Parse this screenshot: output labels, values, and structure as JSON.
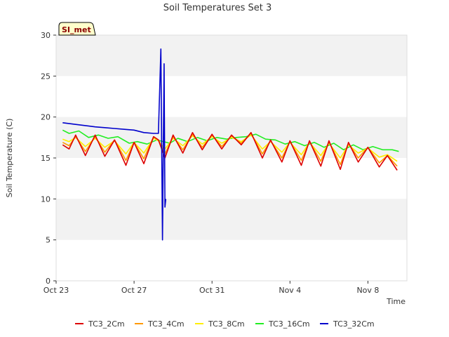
{
  "chart_data": {
    "type": "line",
    "title": "Soil Temperatures Set 3",
    "xlabel": "Time",
    "ylabel": "Soil Temperature (C)",
    "ylim": [
      0,
      30
    ],
    "yticks": [
      0,
      5,
      10,
      15,
      20,
      25,
      30
    ],
    "xlim": [
      "2023-10-23",
      "2023-11-10"
    ],
    "xticks": [
      {
        "date": "2023-10-23",
        "label": "Oct 23"
      },
      {
        "date": "2023-10-27",
        "label": "Oct 27"
      },
      {
        "date": "2023-10-31",
        "label": "Oct 31"
      },
      {
        "date": "2023-11-04",
        "label": "Nov 4"
      },
      {
        "date": "2023-11-08",
        "label": "Nov 8"
      }
    ],
    "grid": "horizontal bands",
    "legend_position": "bottom",
    "site_badge": "SI_met",
    "series": [
      {
        "name": "TC3_2Cm",
        "color": "#dd0000",
        "points": [
          [
            "2023-10-23 08:00",
            16.6
          ],
          [
            "2023-10-23 16:00",
            16.1
          ],
          [
            "2023-10-24 00:00",
            17.8
          ],
          [
            "2023-10-24 12:00",
            15.3
          ],
          [
            "2023-10-25 00:00",
            17.8
          ],
          [
            "2023-10-25 12:00",
            15.2
          ],
          [
            "2023-10-26 00:00",
            17.2
          ],
          [
            "2023-10-26 14:00",
            14.1
          ],
          [
            "2023-10-27 00:00",
            16.9
          ],
          [
            "2023-10-27 12:00",
            14.3
          ],
          [
            "2023-10-28 00:00",
            17.6
          ],
          [
            "2023-10-28 06:00",
            17.2
          ],
          [
            "2023-10-28 14:00",
            15.0
          ],
          [
            "2023-10-29 00:00",
            17.8
          ],
          [
            "2023-10-29 12:00",
            15.6
          ],
          [
            "2023-10-30 00:00",
            18.1
          ],
          [
            "2023-10-30 12:00",
            16.0
          ],
          [
            "2023-10-31 00:00",
            17.9
          ],
          [
            "2023-10-31 12:00",
            16.1
          ],
          [
            "2023-11-01 00:00",
            17.8
          ],
          [
            "2023-11-01 12:00",
            16.6
          ],
          [
            "2023-11-02 00:00",
            18.1
          ],
          [
            "2023-11-02 14:00",
            15.0
          ],
          [
            "2023-11-03 00:00",
            17.2
          ],
          [
            "2023-11-03 14:00",
            14.5
          ],
          [
            "2023-11-04 00:00",
            17.1
          ],
          [
            "2023-11-04 14:00",
            14.1
          ],
          [
            "2023-11-05 00:00",
            17.1
          ],
          [
            "2023-11-05 14:00",
            14.0
          ],
          [
            "2023-11-06 00:00",
            17.1
          ],
          [
            "2023-11-06 14:00",
            13.6
          ],
          [
            "2023-11-07 00:00",
            16.9
          ],
          [
            "2023-11-07 12:00",
            14.5
          ],
          [
            "2023-11-08 00:00",
            16.3
          ],
          [
            "2023-11-08 14:00",
            13.9
          ],
          [
            "2023-11-09 00:00",
            15.3
          ],
          [
            "2023-11-09 12:00",
            13.5
          ]
        ]
      },
      {
        "name": "TC3_4Cm",
        "color": "#ff9900",
        "points": [
          [
            "2023-10-23 08:00",
            16.9
          ],
          [
            "2023-10-23 16:00",
            16.5
          ],
          [
            "2023-10-24 00:00",
            17.6
          ],
          [
            "2023-10-24 12:00",
            15.8
          ],
          [
            "2023-10-25 00:00",
            17.6
          ],
          [
            "2023-10-25 12:00",
            15.7
          ],
          [
            "2023-10-26 00:00",
            17.2
          ],
          [
            "2023-10-26 14:00",
            14.7
          ],
          [
            "2023-10-27 00:00",
            16.9
          ],
          [
            "2023-10-27 12:00",
            14.9
          ],
          [
            "2023-10-28 00:00",
            17.6
          ],
          [
            "2023-10-28 06:00",
            17.2
          ],
          [
            "2023-10-28 14:00",
            15.5
          ],
          [
            "2023-10-29 00:00",
            17.6
          ],
          [
            "2023-10-29 12:00",
            16.0
          ],
          [
            "2023-10-30 00:00",
            17.9
          ],
          [
            "2023-10-30 12:00",
            16.3
          ],
          [
            "2023-10-31 00:00",
            17.8
          ],
          [
            "2023-10-31 12:00",
            16.4
          ],
          [
            "2023-11-01 00:00",
            17.7
          ],
          [
            "2023-11-01 12:00",
            16.8
          ],
          [
            "2023-11-02 00:00",
            18.0
          ],
          [
            "2023-11-02 14:00",
            15.5
          ],
          [
            "2023-11-03 00:00",
            17.1
          ],
          [
            "2023-11-03 14:00",
            15.0
          ],
          [
            "2023-11-04 00:00",
            17.0
          ],
          [
            "2023-11-04 14:00",
            14.7
          ],
          [
            "2023-11-05 00:00",
            17.0
          ],
          [
            "2023-11-05 14:00",
            14.6
          ],
          [
            "2023-11-06 00:00",
            17.0
          ],
          [
            "2023-11-06 14:00",
            14.2
          ],
          [
            "2023-11-07 00:00",
            16.8
          ],
          [
            "2023-11-07 12:00",
            15.0
          ],
          [
            "2023-11-08 00:00",
            16.3
          ],
          [
            "2023-11-08 14:00",
            14.4
          ],
          [
            "2023-11-09 00:00",
            15.3
          ],
          [
            "2023-11-09 12:00",
            14.0
          ]
        ]
      },
      {
        "name": "TC3_8Cm",
        "color": "#ffee00",
        "points": [
          [
            "2023-10-23 08:00",
            17.3
          ],
          [
            "2023-10-23 16:00",
            17.0
          ],
          [
            "2023-10-24 00:00",
            17.5
          ],
          [
            "2023-10-24 12:00",
            16.4
          ],
          [
            "2023-10-25 00:00",
            17.4
          ],
          [
            "2023-10-25 12:00",
            16.3
          ],
          [
            "2023-10-26 00:00",
            17.1
          ],
          [
            "2023-10-26 14:00",
            15.5
          ],
          [
            "2023-10-27 00:00",
            16.9
          ],
          [
            "2023-10-27 12:00",
            15.6
          ],
          [
            "2023-10-28 00:00",
            17.4
          ],
          [
            "2023-10-28 06:00",
            17.1
          ],
          [
            "2023-10-28 14:00",
            16.1
          ],
          [
            "2023-10-29 00:00",
            17.4
          ],
          [
            "2023-10-29 12:00",
            16.5
          ],
          [
            "2023-10-30 00:00",
            17.7
          ],
          [
            "2023-10-30 12:00",
            16.7
          ],
          [
            "2023-10-31 00:00",
            17.6
          ],
          [
            "2023-10-31 12:00",
            16.8
          ],
          [
            "2023-11-01 00:00",
            17.5
          ],
          [
            "2023-11-01 12:00",
            17.0
          ],
          [
            "2023-11-02 00:00",
            17.8
          ],
          [
            "2023-11-02 14:00",
            16.1
          ],
          [
            "2023-11-03 00:00",
            17.0
          ],
          [
            "2023-11-03 14:00",
            15.7
          ],
          [
            "2023-11-04 00:00",
            16.9
          ],
          [
            "2023-11-04 14:00",
            15.4
          ],
          [
            "2023-11-05 00:00",
            16.9
          ],
          [
            "2023-11-05 14:00",
            15.3
          ],
          [
            "2023-11-06 00:00",
            16.8
          ],
          [
            "2023-11-06 14:00",
            15.0
          ],
          [
            "2023-11-07 00:00",
            16.6
          ],
          [
            "2023-11-07 12:00",
            15.6
          ],
          [
            "2023-11-08 00:00",
            16.2
          ],
          [
            "2023-11-08 14:00",
            15.1
          ],
          [
            "2023-11-09 00:00",
            15.4
          ],
          [
            "2023-11-09 12:00",
            14.6
          ]
        ]
      },
      {
        "name": "TC3_16Cm",
        "color": "#22ee22",
        "points": [
          [
            "2023-10-23 08:00",
            18.4
          ],
          [
            "2023-10-23 16:00",
            18.0
          ],
          [
            "2023-10-24 04:00",
            18.3
          ],
          [
            "2023-10-24 16:00",
            17.5
          ],
          [
            "2023-10-25 04:00",
            17.8
          ],
          [
            "2023-10-25 16:00",
            17.4
          ],
          [
            "2023-10-26 04:00",
            17.6
          ],
          [
            "2023-10-26 18:00",
            16.8
          ],
          [
            "2023-10-27 04:00",
            17.0
          ],
          [
            "2023-10-27 16:00",
            16.7
          ],
          [
            "2023-10-28 04:00",
            17.2
          ],
          [
            "2023-10-28 08:00",
            17.1
          ],
          [
            "2023-10-28 20:00",
            16.8
          ],
          [
            "2023-10-29 06:00",
            17.4
          ],
          [
            "2023-10-29 18:00",
            17.0
          ],
          [
            "2023-10-30 06:00",
            17.5
          ],
          [
            "2023-10-30 18:00",
            17.1
          ],
          [
            "2023-10-31 06:00",
            17.5
          ],
          [
            "2023-10-31 18:00",
            17.3
          ],
          [
            "2023-11-01 06:00",
            17.5
          ],
          [
            "2023-11-01 18:00",
            17.6
          ],
          [
            "2023-11-02 06:00",
            17.9
          ],
          [
            "2023-11-02 18:00",
            17.3
          ],
          [
            "2023-11-03 06:00",
            17.2
          ],
          [
            "2023-11-03 18:00",
            16.7
          ],
          [
            "2023-11-04 06:00",
            17.0
          ],
          [
            "2023-11-04 18:00",
            16.5
          ],
          [
            "2023-11-05 06:00",
            16.9
          ],
          [
            "2023-11-05 18:00",
            16.3
          ],
          [
            "2023-11-06 06:00",
            16.8
          ],
          [
            "2023-11-06 18:00",
            16.0
          ],
          [
            "2023-11-07 06:00",
            16.6
          ],
          [
            "2023-11-07 18:00",
            16.0
          ],
          [
            "2023-11-08 06:00",
            16.4
          ],
          [
            "2023-11-08 18:00",
            16.0
          ],
          [
            "2023-11-09 06:00",
            16.0
          ],
          [
            "2023-11-09 14:00",
            15.8
          ]
        ]
      },
      {
        "name": "TC3_32Cm",
        "color": "#0000cc",
        "points": [
          [
            "2023-10-23 08:00",
            19.3
          ],
          [
            "2023-10-24 00:00",
            19.1
          ],
          [
            "2023-10-25 00:00",
            18.8
          ],
          [
            "2023-10-25 12:00",
            18.7
          ],
          [
            "2023-10-26 00:00",
            18.6
          ],
          [
            "2023-10-26 12:00",
            18.5
          ],
          [
            "2023-10-27 00:00",
            18.4
          ],
          [
            "2023-10-27 12:00",
            18.1
          ],
          [
            "2023-10-28 00:00",
            18.0
          ],
          [
            "2023-10-28 06:00",
            18.0
          ],
          [
            "2023-10-28 09:00",
            28.3
          ],
          [
            "2023-10-28 11:00",
            5.0
          ],
          [
            "2023-10-28 13:00",
            26.5
          ],
          [
            "2023-10-28 14:00",
            9.0
          ],
          [
            "2023-10-28 15:00",
            10.0
          ]
        ]
      }
    ]
  }
}
